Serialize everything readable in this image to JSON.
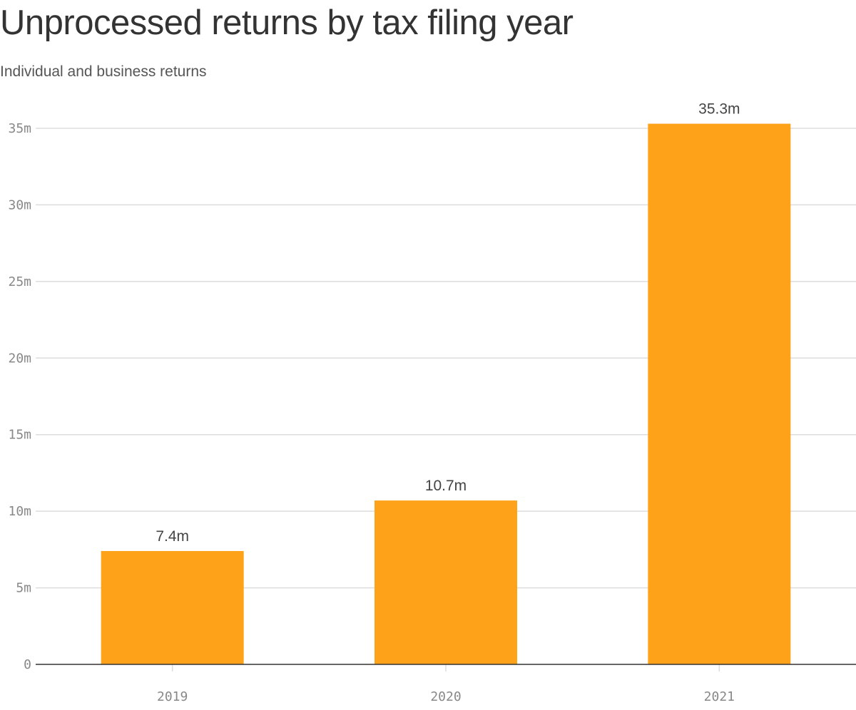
{
  "header": {
    "title": "Unprocessed returns by tax filing year",
    "subtitle": "Individual and business returns"
  },
  "colors": {
    "bar": "#fea219",
    "grid": "#dddddd",
    "axis": "#333333",
    "tick_text": "#888888",
    "label_text": "#444444"
  },
  "chart_data": {
    "type": "bar",
    "title": "Unprocessed returns by tax filing year",
    "subtitle": "Individual and business returns",
    "categories": [
      "2019",
      "2020",
      "2021"
    ],
    "values": [
      7.4,
      10.7,
      35.3
    ],
    "value_labels": [
      "7.4m",
      "10.7m",
      "35.3m"
    ],
    "xlabel": "",
    "ylabel": "",
    "ylim": [
      0,
      35
    ],
    "yticks": [
      0,
      5,
      10,
      15,
      20,
      25,
      30,
      35
    ],
    "ytick_labels": [
      "0",
      "5m",
      "10m",
      "15m",
      "20m",
      "25m",
      "30m",
      "35m"
    ],
    "grid": true,
    "legend": "none"
  }
}
